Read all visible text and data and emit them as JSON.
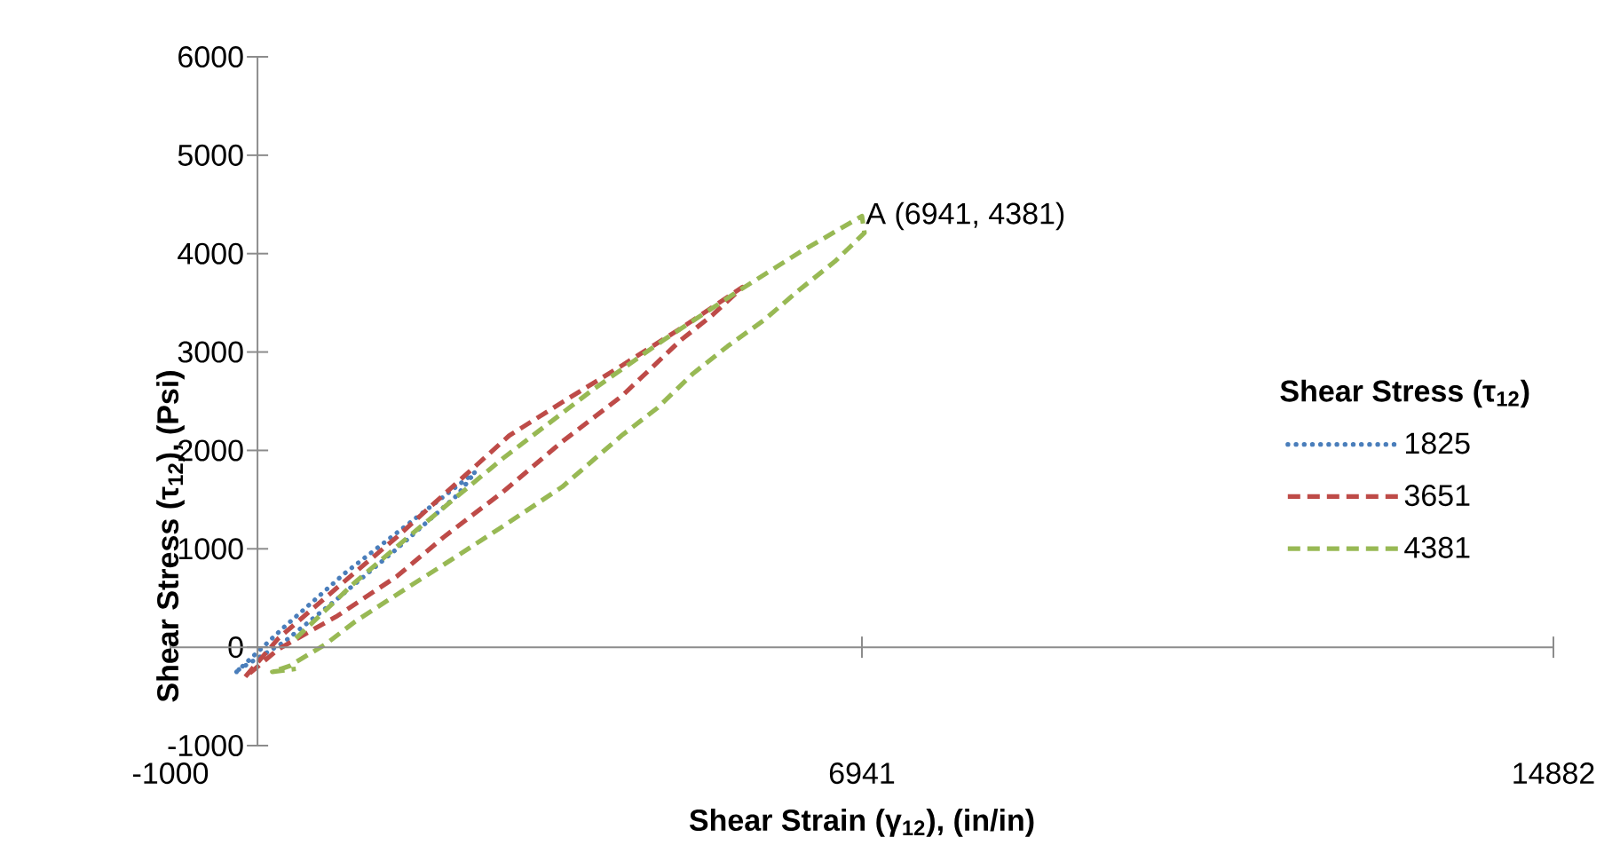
{
  "chart_data": {
    "type": "line",
    "xlabel": "Shear Strain (γ$_{12}$), (in/in)",
    "ylabel": "Shear Stress (τ$_{12}$), (Psi)",
    "legend_title": "Shear Stress (τ$_{12}$)",
    "legend": "right",
    "marker": "none",
    "xlim": [
      -1000,
      14882
    ],
    "xticks": [
      -1000,
      6941,
      14882
    ],
    "ylim": [
      -1000,
      6000
    ],
    "yticks": [
      -1000,
      0,
      1000,
      2000,
      3000,
      4000,
      5000,
      6000
    ],
    "annotations": [
      {
        "text": "A (6941, 4381)",
        "x": 6941,
        "y": 4381
      }
    ],
    "series": [
      {
        "name": "1825",
        "color": "#4a7ebb",
        "line_style": "dotted",
        "x": [
          -240,
          300,
          1000,
          1800,
          2500,
          2300,
          1600,
          900,
          300,
          -220
        ],
        "values": [
          -250,
          200,
          750,
          1300,
          1780,
          1550,
          1000,
          480,
          50,
          -230
        ]
      },
      {
        "name": "3651",
        "color": "#be4b48",
        "line_style": "dashed",
        "x": [
          -140,
          240,
          920,
          1600,
          2890,
          3500,
          4180,
          4860,
          5570,
          5230,
          4860,
          4180,
          3500,
          2820,
          2140,
          1600,
          920,
          240,
          -110
        ],
        "values": [
          -300,
          90,
          610,
          1120,
          2150,
          2490,
          2860,
          3240,
          3660,
          3380,
          3120,
          2550,
          2090,
          1580,
          1120,
          720,
          320,
          -20,
          -280
        ]
      },
      {
        "name": "4381",
        "color": "#98b954",
        "line_style": "dashed",
        "x": [
          440,
          1120,
          1730,
          2820,
          3840,
          4660,
          5540,
          6220,
          6941,
          6970,
          6630,
          6220,
          5810,
          5400,
          5000,
          4590,
          4180,
          3500,
          2820,
          2140,
          1730,
          1120,
          780,
          370,
          170,
          440
        ],
        "values": [
          90,
          660,
          1120,
          1920,
          2610,
          3120,
          3630,
          4010,
          4381,
          4210,
          3920,
          3630,
          3320,
          3060,
          2780,
          2430,
          2150,
          1630,
          1230,
          840,
          610,
          260,
          30,
          -190,
          -250,
          -220
        ]
      }
    ]
  }
}
